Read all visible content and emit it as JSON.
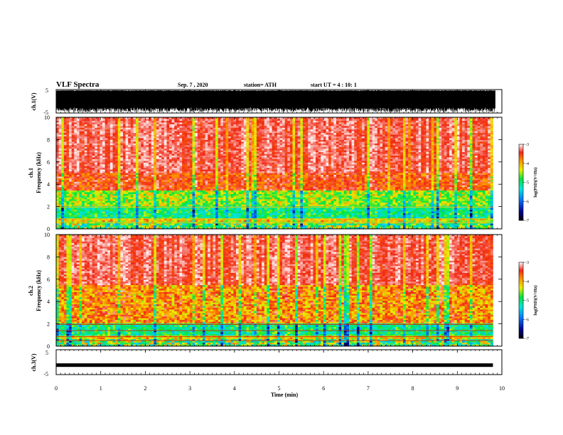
{
  "header": {
    "title": "VLF Spectra",
    "date": "Sep. 7 , 2020",
    "station": "station= ATH",
    "start_ut": "start UT =  4 : 10: 1"
  },
  "chart_data": [
    {
      "type": "line",
      "panel": "ch1-waveform",
      "ylabel": "ch.1(V)",
      "ylim": [
        -5,
        5
      ],
      "yticks": [
        "5",
        "-5"
      ],
      "xlim": [
        0,
        10
      ],
      "description_of_signal": "dense noise waveform spanning approx full range"
    },
    {
      "type": "heatmap",
      "panel": "ch1-spectrogram",
      "ylabel_line1": "ch.1",
      "ylabel_line2": "Frequency (kHz)",
      "ylim": [
        0,
        10
      ],
      "yticks": [
        "0",
        "2",
        "4",
        "6",
        "8",
        "10"
      ],
      "xlim": [
        0,
        10
      ],
      "colorbar": {
        "label": "log(PSD)(V²/Hz)",
        "range": [
          -7,
          -3
        ],
        "ticks": [
          "-3",
          "-4",
          "-5",
          "-6",
          "-7"
        ]
      }
    },
    {
      "type": "heatmap",
      "panel": "ch2-spectrogram",
      "ylabel_line1": "ch.2",
      "ylabel_line2": "Frequency (kHz)",
      "ylim": [
        0,
        10
      ],
      "yticks": [
        "0",
        "2",
        "4",
        "6",
        "8",
        "10"
      ],
      "xlim": [
        0,
        10
      ],
      "colorbar": {
        "label": "log(PSD)(V²/Hz)",
        "range": [
          -7,
          -3
        ],
        "ticks": [
          "-3",
          "-4",
          "-5",
          "-6",
          "-7"
        ]
      }
    },
    {
      "type": "line",
      "panel": "ch3-waveform",
      "ylabel": "ch.3(V)",
      "ylim": [
        -5,
        5
      ],
      "yticks": [
        "5",
        "-5"
      ],
      "xlim": [
        0,
        10
      ],
      "xlabel": "Time (min)",
      "xticks": [
        "0",
        "1",
        "2",
        "3",
        "4",
        "5",
        "6",
        "7",
        "8",
        "9",
        "10"
      ],
      "approx_level": -1.2,
      "data_end_x": 9.8
    }
  ]
}
